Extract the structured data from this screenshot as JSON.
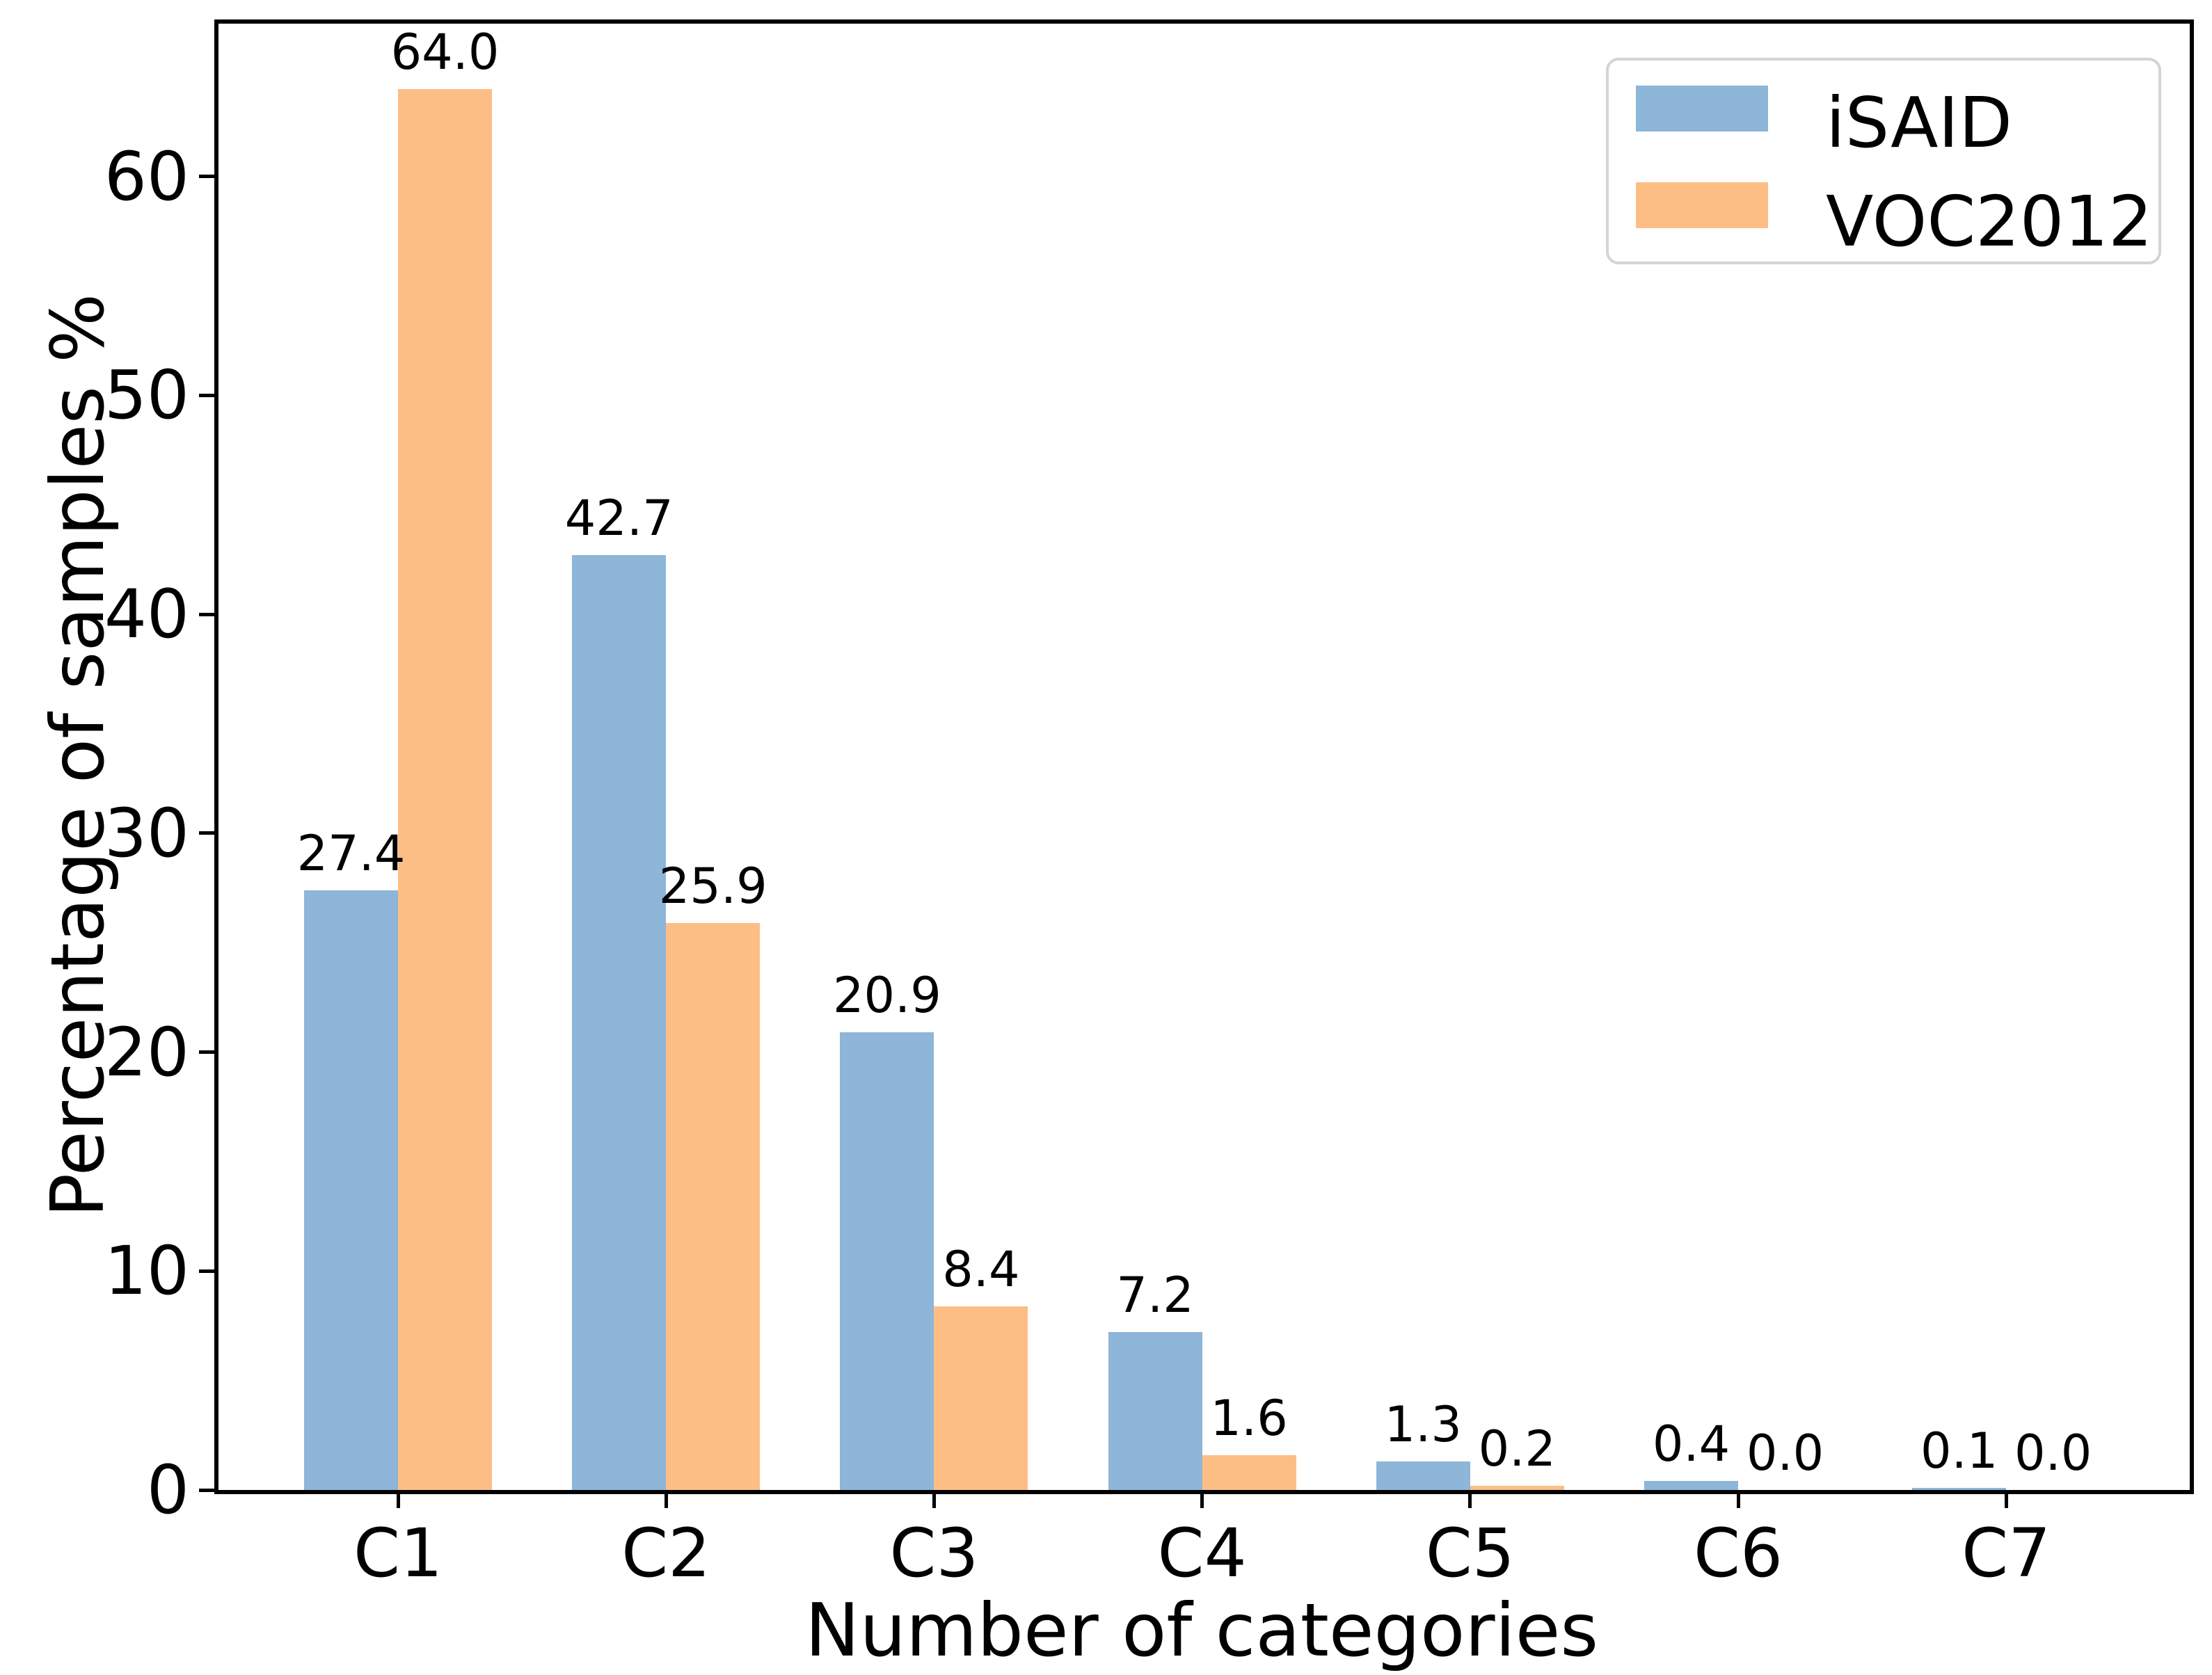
{
  "chart_data": {
    "type": "bar",
    "title": "",
    "xlabel": "Number of categories",
    "ylabel": "Percentage of samples %",
    "categories": [
      "C1",
      "C2",
      "C3",
      "C4",
      "C5",
      "C6",
      "C7"
    ],
    "series": [
      {
        "name": "iSAID",
        "color": "#8db6d8",
        "values": [
          27.4,
          42.7,
          20.9,
          7.2,
          1.3,
          0.4,
          0.1
        ]
      },
      {
        "name": "VOC2012",
        "color": "#fdbe85",
        "values": [
          64.0,
          25.9,
          8.4,
          1.6,
          0.2,
          0.0,
          0.0
        ]
      }
    ],
    "bar_value_labels": true,
    "value_label_decimals": 1,
    "yticks": [
      0,
      10,
      20,
      30,
      40,
      50,
      60
    ],
    "ylim": [
      0,
      67.2
    ],
    "grid": false,
    "legend_position": "upper right",
    "axis_color": "#000000",
    "background_color": "#ffffff",
    "legend_border_color": "#d4d4d4"
  }
}
